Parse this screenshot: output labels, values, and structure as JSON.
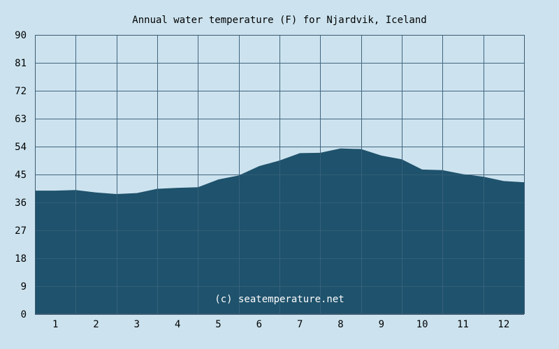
{
  "chart_data": {
    "type": "area",
    "title": "Annual water temperature (F) for Njardvik, Iceland",
    "xlabel": "",
    "ylabel": "",
    "x_ticks": [
      "1",
      "2",
      "3",
      "4",
      "5",
      "6",
      "7",
      "8",
      "9",
      "10",
      "11",
      "12"
    ],
    "y_ticks": [
      "0",
      "9",
      "18",
      "27",
      "36",
      "45",
      "54",
      "63",
      "72",
      "81",
      "90"
    ],
    "xlim": [
      0.5,
      12.5
    ],
    "ylim": [
      0,
      90
    ],
    "grid": true,
    "watermark": "(c) seatemperature.net",
    "colors": {
      "background": "#cce3ef",
      "area": "#1f526c",
      "grid": "#3c5a72"
    },
    "series": [
      {
        "x": [
          0.5,
          1.0,
          1.5,
          2.0,
          2.5,
          3.0,
          3.5,
          4.0,
          4.5,
          5.0,
          5.5,
          6.0,
          6.5,
          7.0,
          7.5,
          8.0,
          8.5,
          9.0,
          9.5,
          10.0,
          10.5,
          11.0,
          11.5,
          12.0,
          12.5
        ],
        "y": [
          39.8,
          39.8,
          40.0,
          39.2,
          38.7,
          39.0,
          40.4,
          40.7,
          40.9,
          43.4,
          44.7,
          47.7,
          49.5,
          51.9,
          52.0,
          53.4,
          53.2,
          51.1,
          49.9,
          46.6,
          46.4,
          45.1,
          44.3,
          42.9,
          42.5
        ]
      }
    ]
  }
}
